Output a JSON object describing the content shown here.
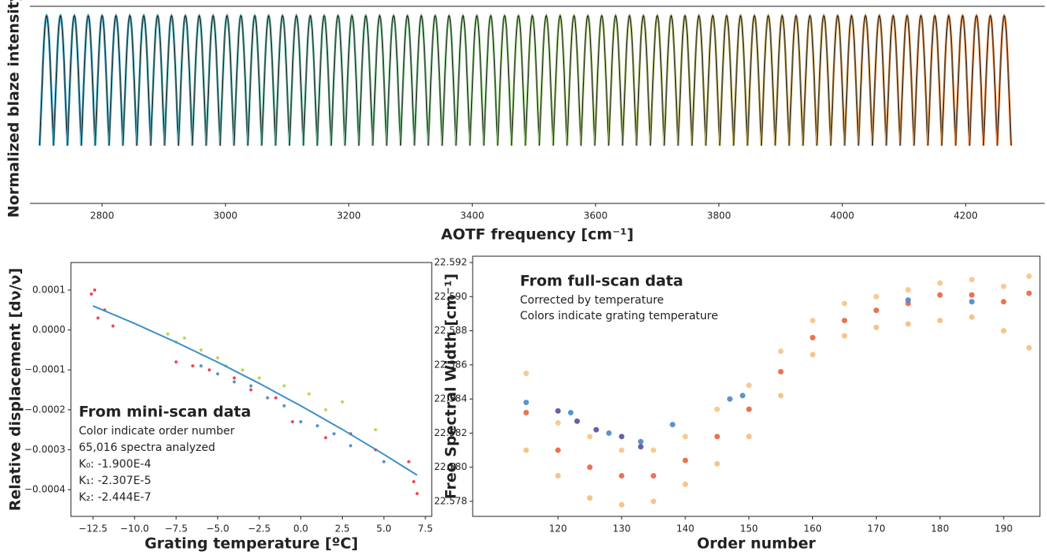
{
  "chart_data": [
    {
      "type": "blaze",
      "xlabel": "AOTF frequency [cm⁻¹]",
      "ylabel": "Normalized blaze intensity",
      "x": [
        2710,
        2732.5,
        2755,
        2777.5,
        2800,
        2822.5,
        2845,
        2867.5,
        2890,
        2912.5,
        2935,
        2957.5,
        2980,
        3002.5,
        3025,
        3047.5,
        3070,
        3092.5,
        3115,
        3137.5,
        3160,
        3182.5,
        3205,
        3227.5,
        3250,
        3272.5,
        3295,
        3317.5,
        3340,
        3362.5,
        3385,
        3407.5,
        3430,
        3452.5,
        3475,
        3497.5,
        3520,
        3542.5,
        3565,
        3587.5,
        3610,
        3632.5,
        3655,
        3677.5,
        3700,
        3722.5,
        3745,
        3767.5,
        3790,
        3812.5,
        3835,
        3857.5,
        3880,
        3902.5,
        3925,
        3947.5,
        3970,
        3992.5,
        4015,
        4037.5,
        4060,
        4082.5,
        4105,
        4127.5,
        4150,
        4172.5,
        4195,
        4217.5,
        4240,
        4262.5
      ],
      "values": [
        1,
        1,
        1,
        1,
        1,
        1,
        1,
        1,
        1,
        1,
        1,
        1,
        1,
        1,
        1,
        1,
        1,
        1,
        1,
        1,
        1,
        1,
        1,
        1,
        1,
        1,
        1,
        1,
        1,
        1,
        1,
        1,
        1,
        1,
        1,
        1,
        1,
        1,
        1,
        1,
        1,
        1,
        1,
        1,
        1,
        1,
        1,
        1,
        1,
        1,
        1,
        1,
        1,
        1,
        1,
        1,
        1,
        1,
        1,
        1,
        1,
        1,
        1,
        1,
        1,
        1,
        1,
        1,
        1,
        1
      ],
      "colormap": [
        "#5ab4d6",
        "#a6d58a",
        "#f09a62"
      ],
      "xlim": [
        2683,
        4328
      ],
      "xticks": [
        2800,
        3000,
        3200,
        3400,
        3600,
        3800,
        4000,
        4200
      ],
      "ylim": [
        0,
        1.05
      ]
    },
    {
      "type": "scatter",
      "xlabel": "Grating temperature [ºC]",
      "ylabel": "Relative displacement [dν/ν]",
      "annotations": [
        "From mini-scan data",
        "Color indicate order number",
        "65,016 spectra analyzed",
        "K₀: -1.900E-4",
        "K₁: -2.307E-5",
        "K₂: -2.444E-7"
      ],
      "xlim": [
        -13.83,
        7.88
      ],
      "xticks": [
        {
          "value": -12.5,
          "label": "−12.5"
        },
        {
          "value": -10,
          "label": "−10.0"
        },
        {
          "value": -7.5,
          "label": "−7.5"
        },
        {
          "value": -5,
          "label": "−5.0"
        },
        {
          "value": -2.5,
          "label": "−2.5"
        },
        {
          "value": 0,
          "label": "0.0"
        },
        2.5,
        {
          "value": 5,
          "label": "5.0"
        },
        7.5
      ],
      "ylim": [
        -0.000467,
        0.000169
      ],
      "yticks": [
        0.0001,
        {
          "value": 0,
          "label": "0.0000"
        },
        {
          "value": -0.0001,
          "label": "−0.0001"
        },
        {
          "value": -0.0002,
          "label": "−0.0002"
        },
        {
          "value": -0.0003,
          "label": "−0.0003"
        },
        {
          "value": -0.0004,
          "label": "−0.0004"
        }
      ],
      "series": [
        {
          "color": "#e8354a",
          "x": [
            -12.6,
            -12.2,
            -11.8,
            -11.3,
            -12.4,
            -7.5,
            -6.5,
            -5.5,
            -4,
            -3,
            -1.5,
            -0.5,
            1.5,
            3,
            4.5,
            6.5,
            6.8,
            7
          ],
          "values": [
            9e-05,
            3e-05,
            5e-05,
            1e-05,
            0.0001,
            -8e-05,
            -9e-05,
            -0.0001,
            -0.00012,
            -0.00015,
            -0.00017,
            -0.00023,
            -0.00027,
            -0.00026,
            -0.0003,
            -0.00033,
            -0.00038,
            -0.00041
          ]
        },
        {
          "color": "#b5d43a",
          "x": [
            -8,
            -7.5,
            -7,
            -6,
            -5,
            -4.5,
            -3.5,
            -2.5,
            -1,
            0.5,
            1.5,
            2.5,
            4.5
          ],
          "values": [
            -1e-05,
            -3e-05,
            -2e-05,
            -5e-05,
            -7e-05,
            -9e-05,
            -0.0001,
            -0.00012,
            -0.00014,
            -0.00016,
            -0.0002,
            -0.00018,
            -0.00025
          ]
        },
        {
          "color": "#4a86c8",
          "x": [
            -6,
            -5,
            -4,
            -3,
            -2,
            -1,
            0,
            1,
            2,
            3,
            5
          ],
          "values": [
            -9e-05,
            -0.00011,
            -0.00013,
            -0.00014,
            -0.00017,
            -0.00019,
            -0.00023,
            -0.00024,
            -0.00026,
            -0.00029,
            -0.00033
          ]
        },
        {
          "type": "line",
          "color": "#3a8fc9",
          "x": [
            -12.5,
            -10,
            -7.5,
            -5,
            -2.5,
            0,
            2.5,
            5,
            7
          ],
          "values": [
            6.02e-05,
            1.63e-05,
            -3.07e-05,
            -8.07e-05,
            -0.0001338,
            -0.00019,
            -0.0002492,
            -0.0003115,
            -0.0003635
          ]
        }
      ]
    },
    {
      "type": "scatter",
      "xlabel": "Order number",
      "ylabel": "Free Spectral Width [cm⁻¹]",
      "annotations": [
        "From full-scan data",
        "Corrected by temperature",
        "Colors indicate grating temperature"
      ],
      "xlim": [
        106.6,
        195.7
      ],
      "xticks": [
        120,
        130,
        140,
        150,
        160,
        170,
        180,
        190
      ],
      "ylim": [
        22.57712,
        22.59237
      ],
      "yticks": [
        22.578,
        {
          "value": 22.58,
          "label": "22.580"
        },
        22.582,
        22.584,
        22.586,
        22.588,
        {
          "value": 22.59,
          "label": "22.590"
        },
        22.592
      ],
      "series": [
        {
          "color": "#f5bd7c",
          "x": [
            115,
            120,
            125,
            130,
            135,
            140,
            145,
            150,
            155,
            160,
            165,
            170,
            175,
            180,
            185,
            190,
            194
          ],
          "values": [
            22.581,
            22.5795,
            22.5782,
            22.5778,
            22.578,
            22.579,
            22.5802,
            22.5818,
            22.5842,
            22.5866,
            22.5877,
            22.5882,
            22.5884,
            22.5886,
            22.5888,
            22.588,
            22.587
          ]
        },
        {
          "color": "#f6c48a",
          "x": [
            115,
            120,
            125,
            130,
            135,
            140,
            145,
            150,
            155,
            160,
            165,
            170,
            175,
            180,
            185,
            190,
            194
          ],
          "values": [
            22.5855,
            22.5826,
            22.5818,
            22.581,
            22.581,
            22.5818,
            22.5834,
            22.5848,
            22.5868,
            22.5886,
            22.5896,
            22.59,
            22.5904,
            22.5908,
            22.591,
            22.5906,
            22.5912
          ]
        },
        {
          "color": "#e8643c",
          "x": [
            115,
            120,
            125,
            130,
            135,
            140,
            145,
            150,
            155,
            160,
            165,
            170,
            175,
            180,
            185,
            190,
            194
          ],
          "values": [
            22.5832,
            22.581,
            22.58,
            22.5795,
            22.5795,
            22.5804,
            22.5818,
            22.5834,
            22.5856,
            22.5876,
            22.5886,
            22.5892,
            22.5896,
            22.5901,
            22.5901,
            22.5897,
            22.5902
          ]
        },
        {
          "color": "#4a86c8",
          "x": [
            115,
            122,
            128,
            133,
            138,
            147,
            149,
            175,
            185
          ],
          "values": [
            22.5838,
            22.5832,
            22.582,
            22.5815,
            22.5825,
            22.584,
            22.5842,
            22.5898,
            22.5897
          ]
        },
        {
          "color": "#5a4e9c",
          "x": [
            120,
            123,
            126,
            130,
            133
          ],
          "values": [
            22.5833,
            22.5827,
            22.5822,
            22.5818,
            22.5812
          ]
        }
      ]
    }
  ]
}
